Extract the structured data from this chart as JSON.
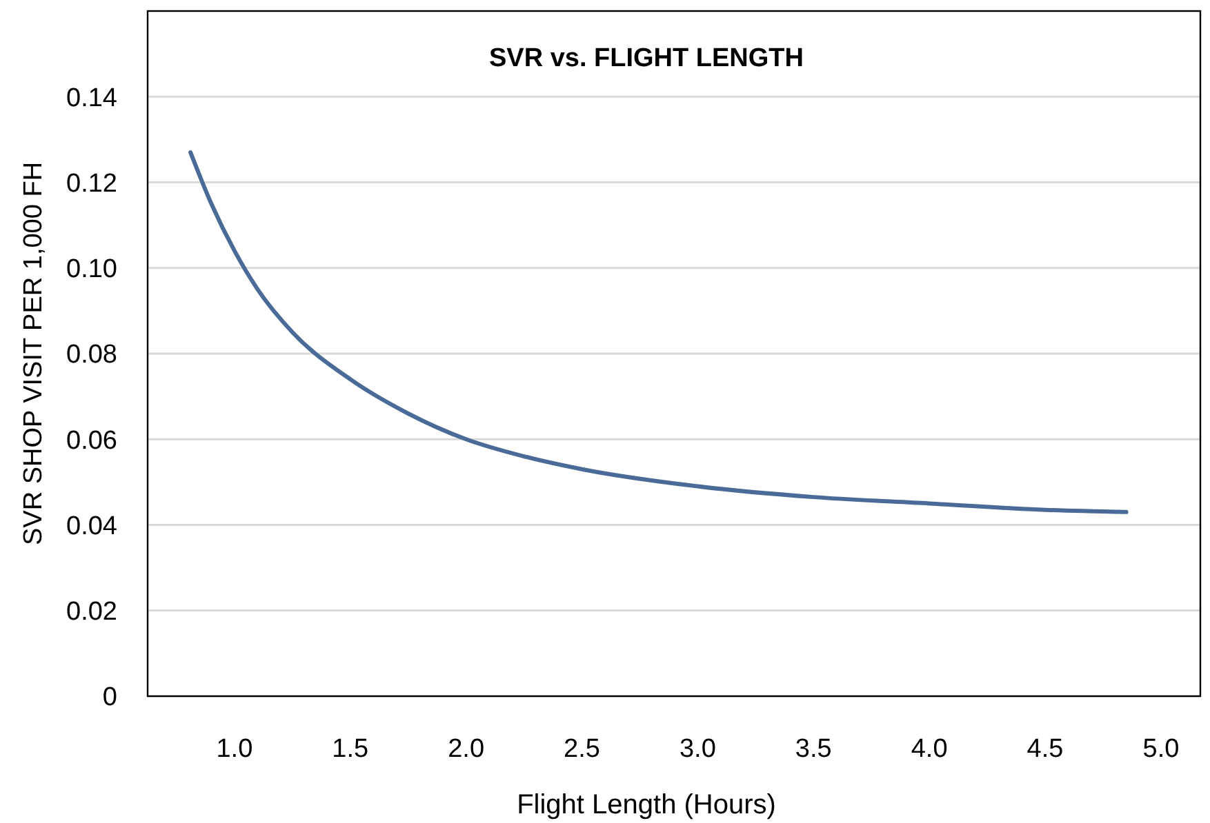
{
  "chart_data": {
    "type": "line",
    "title": "SVR  vs.  FLIGHT LENGTH",
    "xlabel": "Flight Length (Hours)",
    "ylabel": "SVR  SHOP VISIT PER 1,000  FH",
    "x": [
      0.81,
      0.9,
      1.0,
      1.1,
      1.25,
      1.5,
      1.75,
      2.0,
      2.25,
      2.5,
      3.0,
      3.5,
      4.0,
      4.5,
      4.85
    ],
    "series": [
      {
        "color": "#4a6a97",
        "values": [
          0.127,
          0.115,
          0.104,
          0.095,
          0.085,
          0.074,
          0.066,
          0.06,
          0.056,
          0.053,
          0.049,
          0.0465,
          0.045,
          0.0435,
          0.043
        ]
      }
    ],
    "xlim": [
      0.625,
      5.17
    ],
    "xticks": [
      {
        "value": 1,
        "label": "1.0"
      },
      1.5,
      {
        "value": 2,
        "label": "2.0"
      },
      2.5,
      {
        "value": 3,
        "label": "3.0"
      },
      3.5,
      {
        "value": 4,
        "label": "4.0"
      },
      4.5,
      {
        "value": 5,
        "label": "5.0"
      }
    ],
    "ylim": [
      0,
      0.16
    ],
    "yticks": [
      0,
      {
        "value": 0.02,
        "label": "0.02"
      },
      {
        "value": 0.04,
        "label": "0.04"
      },
      {
        "value": 0.06,
        "label": "0.06"
      },
      {
        "value": 0.08,
        "label": "0.08"
      },
      {
        "value": 0.1,
        "label": "0.10"
      },
      {
        "value": 0.12,
        "label": "0.12"
      },
      {
        "value": 0.14,
        "label": "0.14"
      }
    ],
    "grid": "y",
    "marker": "none",
    "line_style": "solid"
  }
}
